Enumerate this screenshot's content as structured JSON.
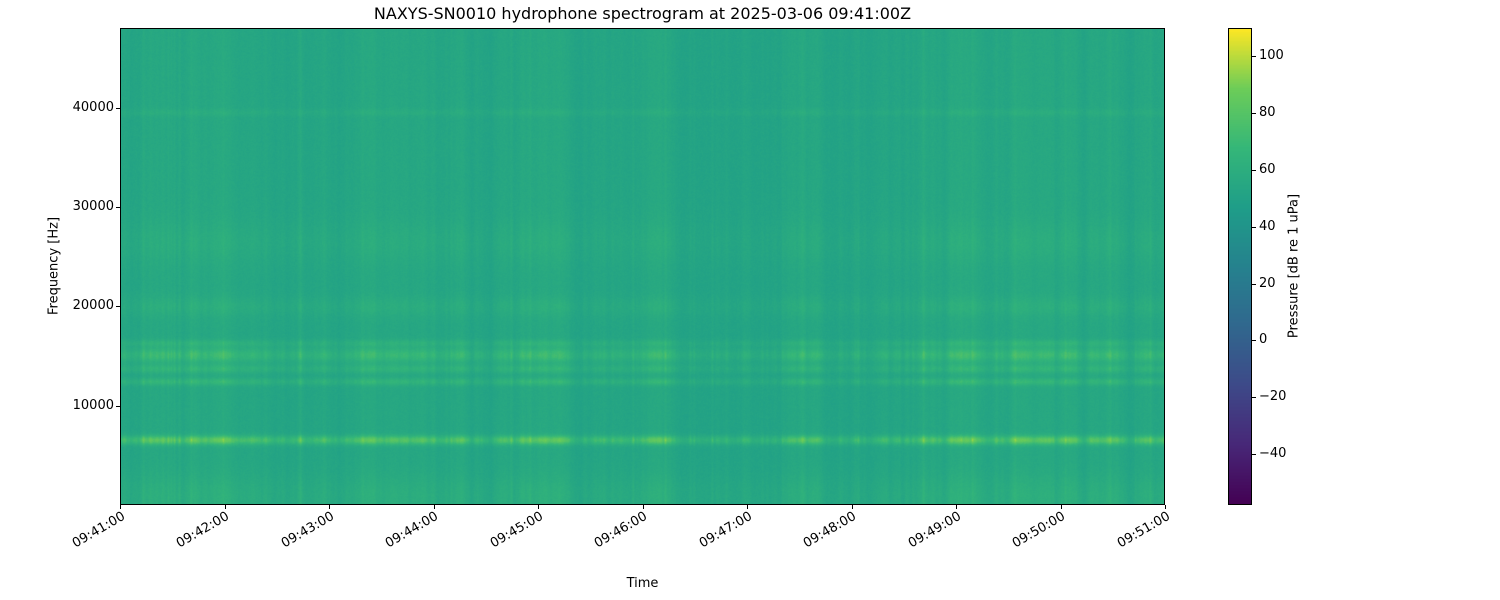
{
  "chart_data": {
    "type": "heatmap",
    "title": "NAXYS-SN0010 hydrophone spectrogram at 2025-03-06 09:41:00Z",
    "xlabel": "Time",
    "ylabel": "Frequency [Hz]",
    "colorbar_label": "Pressure [dB re 1 uPa]",
    "colormap": "viridis",
    "x_ticks": [
      "09:41:00",
      "09:42:00",
      "09:43:00",
      "09:44:00",
      "09:45:00",
      "09:46:00",
      "09:47:00",
      "09:48:00",
      "09:49:00",
      "09:50:00",
      "09:51:00"
    ],
    "y_ticks": [
      {
        "value": 10000,
        "label": "10000"
      },
      {
        "value": 20000,
        "label": "20000"
      },
      {
        "value": 30000,
        "label": "30000"
      },
      {
        "value": 40000,
        "label": "40000"
      }
    ],
    "ylim": [
      0,
      48000
    ],
    "clim": [
      -58,
      110
    ],
    "colorbar_ticks": [
      {
        "value": 100,
        "label": "100"
      },
      {
        "value": 80,
        "label": "80"
      },
      {
        "value": 60,
        "label": "60"
      },
      {
        "value": 40,
        "label": "40"
      },
      {
        "value": 20,
        "label": "20"
      },
      {
        "value": 0,
        "label": "0"
      },
      {
        "value": -20,
        "label": "−20"
      },
      {
        "value": -40,
        "label": "−40"
      }
    ],
    "background_db": 54,
    "stripe_contrast_db": 6,
    "bands": [
      {
        "center_hz": 900,
        "sigma_hz": 1500,
        "peak_db": 7,
        "stripe_coupling": 0.7
      },
      {
        "center_hz": 6500,
        "sigma_hz": 320,
        "peak_db": 26,
        "stripe_coupling": 1.0
      },
      {
        "center_hz": 12400,
        "sigma_hz": 260,
        "peak_db": 11,
        "stripe_coupling": 1.0
      },
      {
        "center_hz": 13700,
        "sigma_hz": 300,
        "peak_db": 10,
        "stripe_coupling": 1.0
      },
      {
        "center_hz": 15100,
        "sigma_hz": 500,
        "peak_db": 15,
        "stripe_coupling": 1.0
      },
      {
        "center_hz": 16300,
        "sigma_hz": 250,
        "peak_db": 8,
        "stripe_coupling": 1.0
      },
      {
        "center_hz": 20000,
        "sigma_hz": 700,
        "peak_db": 5,
        "stripe_coupling": 1.0
      },
      {
        "center_hz": 26500,
        "sigma_hz": 1500,
        "peak_db": 4,
        "stripe_coupling": 1.0
      },
      {
        "center_hz": 39600,
        "sigma_hz": 260,
        "peak_db": 6,
        "stripe_coupling": 0.5
      }
    ]
  }
}
